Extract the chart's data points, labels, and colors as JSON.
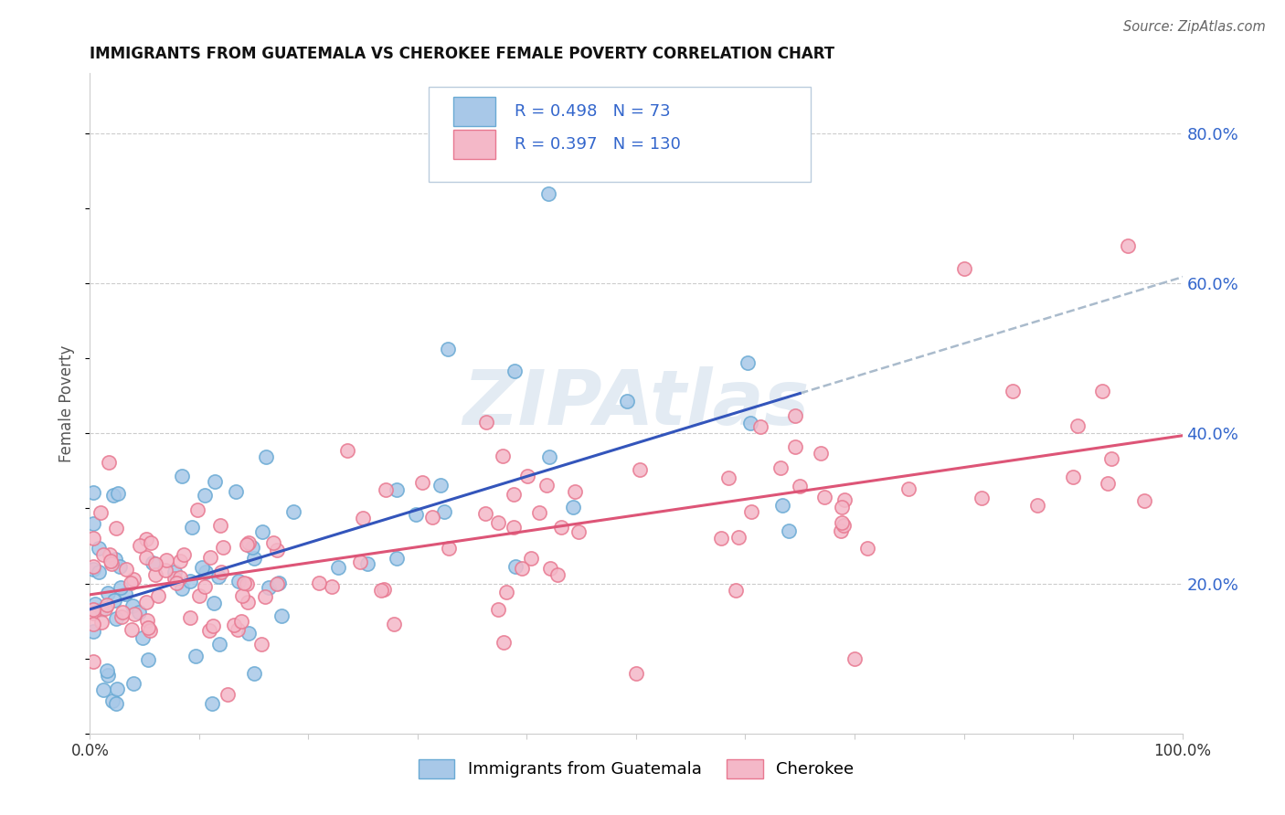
{
  "title": "IMMIGRANTS FROM GUATEMALA VS CHEROKEE FEMALE POVERTY CORRELATION CHART",
  "source": "Source: ZipAtlas.com",
  "ylabel": "Female Poverty",
  "y_tick_labels": [
    "20.0%",
    "40.0%",
    "60.0%",
    "80.0%"
  ],
  "y_tick_values": [
    0.2,
    0.4,
    0.6,
    0.8
  ],
  "series1_color": "#a8c8e8",
  "series1_edge": "#6aaad4",
  "series2_color": "#f4b8c8",
  "series2_edge": "#e87890",
  "trendline1_color": "#3355bb",
  "trendline2_color": "#dd5577",
  "dashed_line_color": "#aabbcc",
  "watermark_color": "#c8d8e8",
  "legend_text_color": "#3366cc",
  "legend_bg": "#ffffff",
  "legend_border": "#ccddee",
  "xlim": [
    0.0,
    1.0
  ],
  "ylim": [
    0.0,
    0.88
  ],
  "R1": "0.498",
  "N1": "73",
  "R2": "0.397",
  "N2": "130",
  "series1_label": "Immigrants from Guatemala",
  "series2_label": "Cherokee",
  "grid_color": "#cccccc",
  "spine_color": "#cccccc"
}
